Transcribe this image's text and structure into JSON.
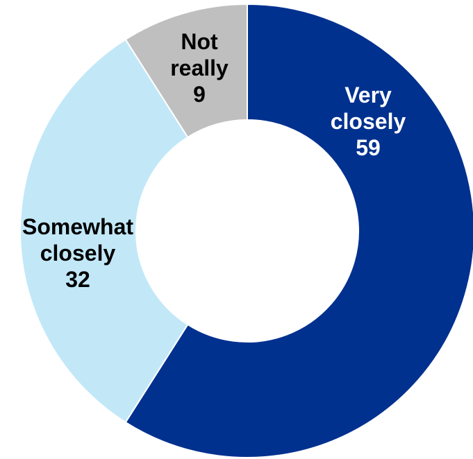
{
  "chart_data": {
    "type": "pie",
    "donut": true,
    "legend": "none",
    "slices": [
      {
        "name_lines": [
          "Very",
          "closely"
        ],
        "value": 59,
        "color": "#00318f",
        "label_color": "#ffffff"
      },
      {
        "name_lines": [
          "Somewhat",
          "closely"
        ],
        "value": 32,
        "color": "#c2e8f8",
        "label_color": "#000000"
      },
      {
        "name_lines": [
          "Not",
          "really"
        ],
        "value": 9,
        "color": "#bfbfbf",
        "label_color": "#000000"
      }
    ]
  }
}
